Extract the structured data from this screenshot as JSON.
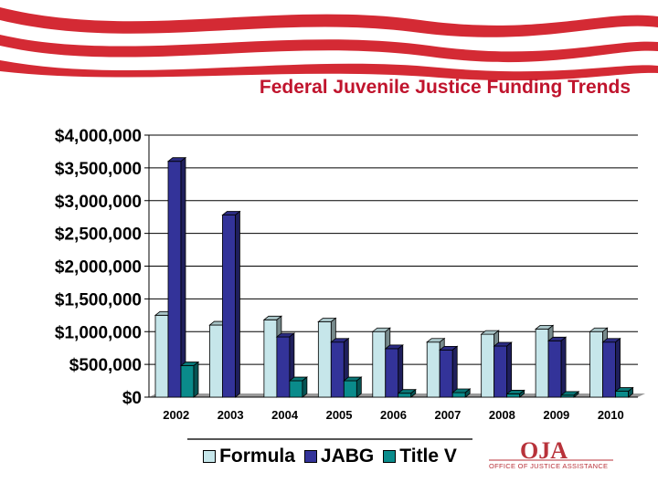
{
  "title": "Federal Juvenile Justice Funding Trends",
  "logo": {
    "mark": "OJA",
    "subtitle": "OFFICE OF JUSTICE ASSISTANCE"
  },
  "colors": {
    "title": "#c0142d",
    "banner_stripe": "#d42a34",
    "Formula": "#c6e6ea",
    "JABG": "#333399",
    "Title V": "#0a8b8b"
  },
  "chart_data": {
    "type": "bar",
    "title": "Federal Juvenile Justice Funding Trends",
    "categories": [
      "2002",
      "2003",
      "2004",
      "2005",
      "2006",
      "2007",
      "2008",
      "2009",
      "2010"
    ],
    "series": [
      {
        "name": "Formula",
        "values": [
          1250000,
          1100000,
          1180000,
          1150000,
          1000000,
          840000,
          960000,
          1040000,
          1000000
        ]
      },
      {
        "name": "JABG",
        "values": [
          3600000,
          2780000,
          920000,
          840000,
          740000,
          720000,
          780000,
          860000,
          840000
        ]
      },
      {
        "name": "Title V",
        "values": [
          480000,
          0,
          250000,
          250000,
          60000,
          70000,
          50000,
          30000,
          90000
        ]
      }
    ],
    "yticks": [
      "$0",
      "$500,000",
      "$1,000,000",
      "$1,500,000",
      "$2,000,000",
      "$2,500,000",
      "$3,000,000",
      "$3,500,000",
      "$4,000,000"
    ],
    "ylim": [
      0,
      4000000
    ],
    "xlabel": "",
    "ylabel": "",
    "grid": true,
    "legend": "bottom"
  }
}
